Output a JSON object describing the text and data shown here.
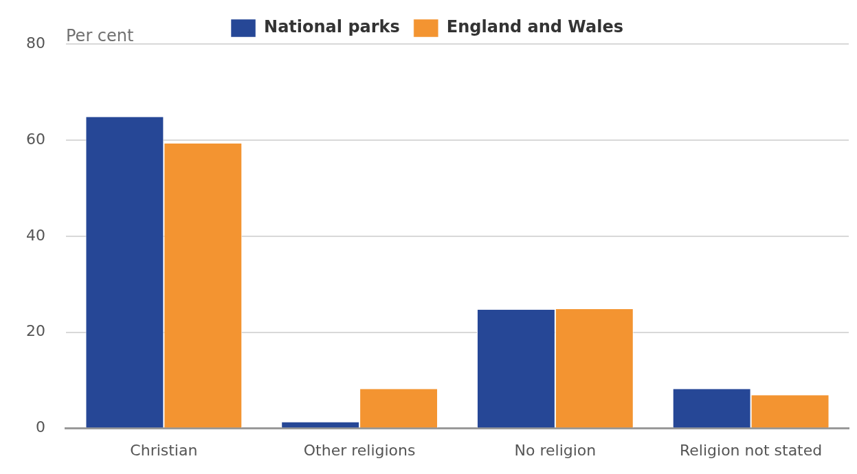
{
  "chart_data": {
    "type": "bar",
    "ylabel": "Per cent",
    "categories": [
      "Christian",
      "Other religions",
      "No religion",
      "Religion not stated"
    ],
    "series": [
      {
        "name": "National parks",
        "color": "#264796",
        "values": [
          64.8,
          1.3,
          24.7,
          8.2
        ]
      },
      {
        "name": "England and Wales",
        "color": "#f39431",
        "values": [
          59.3,
          8.2,
          24.8,
          6.9
        ]
      }
    ],
    "ylim": [
      0,
      80
    ],
    "yticks": [
      0,
      20,
      40,
      60,
      80
    ],
    "grid": "y",
    "legend": "top"
  }
}
